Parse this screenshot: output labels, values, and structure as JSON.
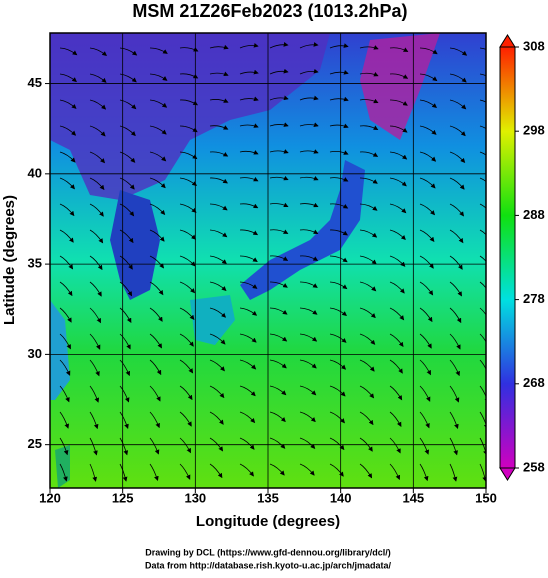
{
  "chart_data": {
    "type": "field",
    "title": "MSM 21Z26Feb2023 (1013.2hPa)",
    "x_label": "Longitude (degrees)",
    "y_label": "Latitude  (degrees)",
    "xlim": [
      120,
      150
    ],
    "xticks": [
      120,
      125,
      130,
      135,
      140,
      145,
      150
    ],
    "ylim": [
      22.6,
      47.8
    ],
    "yticks": [
      25,
      30,
      35,
      40,
      45
    ],
    "grid": true,
    "colorbar": {
      "lim": [
        258,
        308
      ],
      "ticks": [
        258,
        268,
        278,
        288,
        298,
        308
      ],
      "colors": [
        "#d000c0",
        "#3030e0",
        "#00e0e0",
        "#10e010",
        "#e0f000",
        "#ff2000"
      ]
    },
    "credits": [
      "Drawing by DCL (https://www.gfd-dennou.org/library/dcl/)",
      "Data from http://database.rish.kyoto-u.ac.jp/arch/jmadata/"
    ]
  }
}
